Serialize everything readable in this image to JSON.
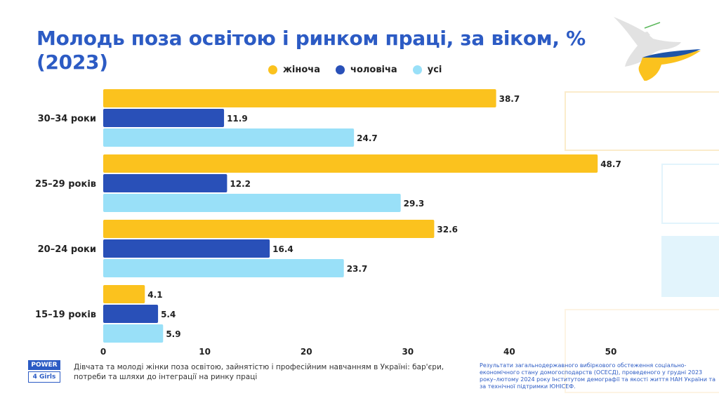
{
  "chart_data": {
    "type": "bar",
    "orientation": "horizontal",
    "title": "Молодь поза освітою і ринком праці, за віком, % (2023)",
    "categories": [
      "30–34 роки",
      "25–29 років",
      "20–24 роки",
      "15–19 років"
    ],
    "series": [
      {
        "name": "жіноча",
        "color": "#FBC21E",
        "values": [
          38.7,
          48.7,
          32.6,
          4.1
        ]
      },
      {
        "name": "чоловіча",
        "color": "#2950B8",
        "values": [
          11.9,
          12.2,
          16.4,
          5.4
        ]
      },
      {
        "name": "усі",
        "color": "#99E0F8",
        "values": [
          24.7,
          29.3,
          23.7,
          5.9
        ]
      }
    ],
    "xlim": [
      0,
      50
    ],
    "xticks": [
      0,
      10,
      20,
      30,
      40,
      50
    ],
    "grid": false,
    "legend": "top"
  },
  "footer": {
    "logo_top": "POWER",
    "logo_bottom": "4 Girls",
    "publication": "Дівчата та молоді жінки  поза освітою, зайнятістю і професійним навчанням в Україні: бар'єри, потреби та шляхи до інтеграції на ринку праці",
    "source": "Результати загальнодержавного вибіркового обстеження соціально-економічного стану домогосподарств (ОСЕСД), проведеного у грудні 2023 року–лютому 2024 року Інститутом демографії та якості життя НАН України та за технічної підтримки ЮНІСЕФ."
  }
}
